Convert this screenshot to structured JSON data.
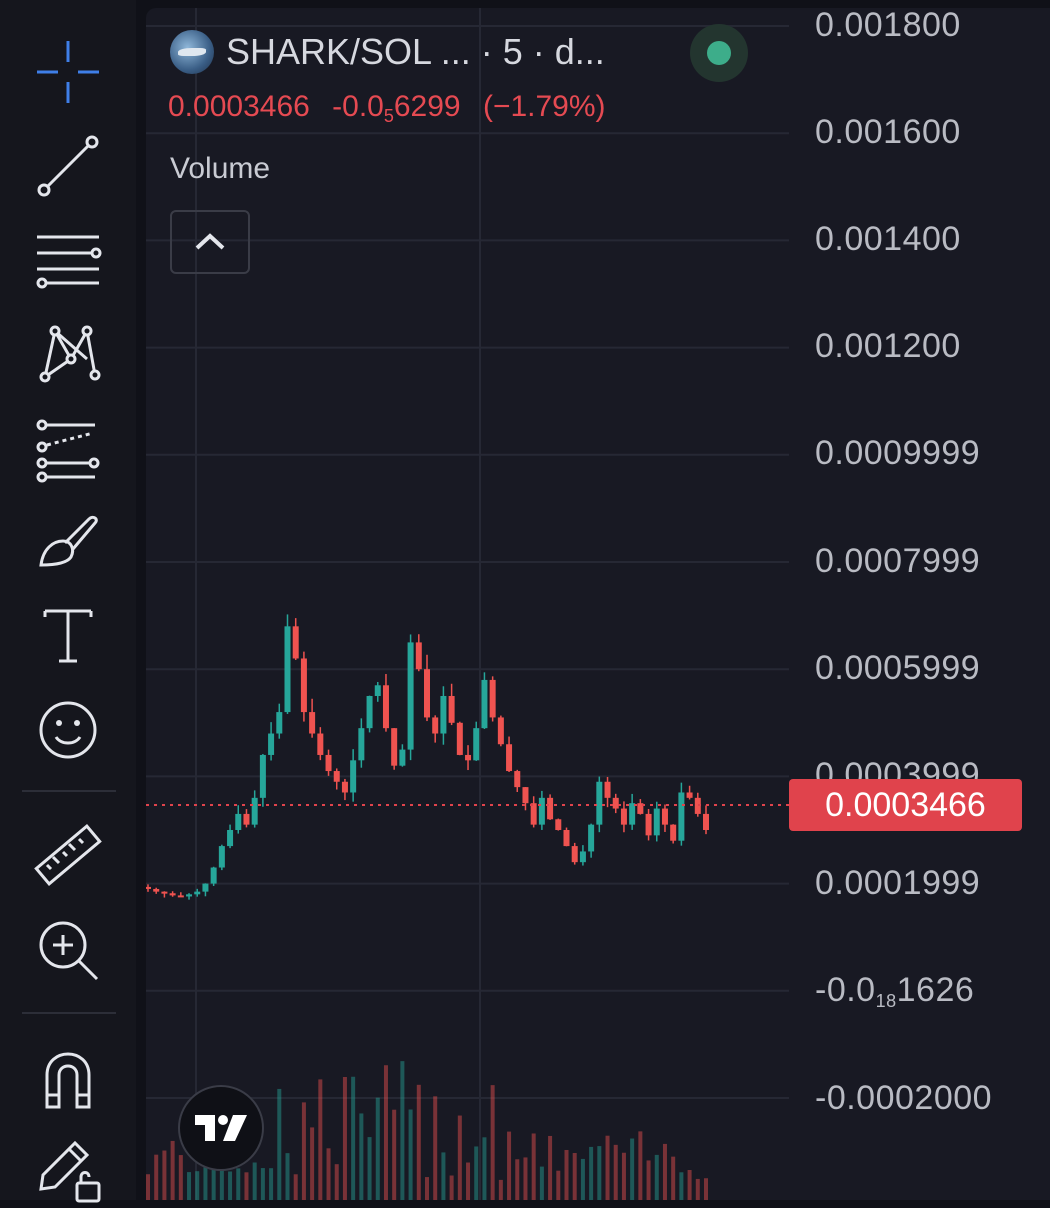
{
  "legend": {
    "symbol": "SHARK/SOL ... · 5 · d...",
    "price": "0.0003466",
    "change_prefix": "-0.0",
    "change_sub": "5",
    "change_rest": "6299",
    "change_pct": "(−1.79%)",
    "volume_label": "Volume"
  },
  "price_axis": {
    "labels": [
      "0.001800",
      "0.001600",
      "0.001400",
      "0.001200",
      "0.0009999",
      "0.0007999",
      "0.0005999",
      "0.0003999",
      "0.0001999"
    ],
    "neg_label_prefix": "-0.0",
    "neg_label_sub": "18",
    "neg_label_rest": "1626",
    "bottom_label": "-0.0002000",
    "current_price": "0.0003466"
  },
  "colors": {
    "up": "#26a69a",
    "down": "#ef5350",
    "price_line": "#e0434c",
    "status": "#3dad8a"
  },
  "toolbar": {
    "tools": [
      "crosshair-icon",
      "trend-line-icon",
      "horizontal-lines-icon",
      "pattern-icon",
      "forecast-icon",
      "brush-icon",
      "text-icon",
      "emoji-icon",
      "ruler-icon",
      "zoom-in-icon",
      "magnet-icon",
      "lock-drawing-icon"
    ]
  },
  "chart_data": {
    "type": "candlestick",
    "series": [
      {
        "name": "SHARK/SOL",
        "values": [
          0.00019,
          0.000185,
          0.000182,
          0.000178,
          0.000176,
          0.00018,
          0.000185,
          0.0002,
          0.00023,
          0.00027,
          0.0003,
          0.00033,
          0.00031,
          0.00036,
          0.00044,
          0.00048,
          0.00052,
          0.00068,
          0.00062,
          0.00052,
          0.00048,
          0.00044,
          0.00041,
          0.00039,
          0.00037,
          0.00043,
          0.00049,
          0.00055,
          0.00057,
          0.00049,
          0.00042,
          0.00045,
          0.00065,
          0.0006,
          0.00051,
          0.00048,
          0.00055,
          0.0005,
          0.00044,
          0.00043,
          0.00049,
          0.00058,
          0.00051,
          0.00046,
          0.00041,
          0.00038,
          0.00035,
          0.00031,
          0.00036,
          0.00032,
          0.0003,
          0.00027,
          0.00024,
          0.00026,
          0.00031,
          0.00039,
          0.00036,
          0.00034,
          0.00031,
          0.00035,
          0.00033,
          0.00029,
          0.00034,
          0.00031,
          0.00028,
          0.00037,
          0.00036,
          0.00033,
          0.0003
        ]
      }
    ],
    "ylim": [
      -0.0002,
      0.0018
    ],
    "current_price": 0.0003466
  }
}
